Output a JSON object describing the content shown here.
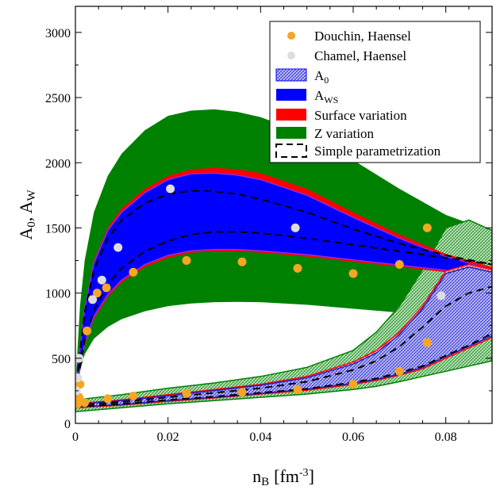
{
  "chart_data": {
    "type": "line",
    "xlabel": "n",
    "xlabel_sub": "B",
    "xlabel_unit": "[fm",
    "xlabel_unit_exp": "-3",
    "xlabel_unit_close": "]",
    "ylabel_a": "A",
    "ylabel_a_sub": "0",
    "ylabel_sep": ", A",
    "ylabel_b_sub": "W",
    "xlim": [
      0,
      0.09
    ],
    "ylim": [
      0,
      3200
    ],
    "x_ticks": [
      0,
      0.02,
      0.04,
      0.06,
      0.08
    ],
    "x_tick_labels": [
      "0",
      "0.02",
      "0.04",
      "0.06",
      "0.08"
    ],
    "y_ticks": [
      0,
      500,
      1000,
      1500,
      2000,
      2500,
      3000
    ],
    "y_tick_labels": [
      "0",
      "500",
      "1000",
      "1500",
      "2000",
      "2500",
      "3000"
    ],
    "legend_position": "top-right",
    "legend": [
      {
        "id": "douchin",
        "text": "Douchin, Haensel"
      },
      {
        "id": "chamel",
        "text": "Chamel, Haensel"
      },
      {
        "id": "a0",
        "text": "A",
        "sub": "0"
      },
      {
        "id": "aws",
        "text": "A",
        "sub": "WS"
      },
      {
        "id": "surface",
        "text": "Surface variation"
      },
      {
        "id": "zvar",
        "text": "Z variation"
      },
      {
        "id": "simple",
        "text": "Simple parametrization"
      }
    ],
    "colors": {
      "douchin": "#f5a623",
      "chamel": "#dddddd",
      "aws": "#0000ff",
      "a0": "#3b3bdc",
      "surface": "#ff0000",
      "zvar": "#008000",
      "simple": "#000000"
    },
    "series": [
      {
        "name": "Douchin, Haensel",
        "kind": "scatter",
        "points": [
          [
            0.0005,
            150
          ],
          [
            0.0008,
            200
          ],
          [
            0.001,
            300
          ],
          [
            0.002,
            160
          ],
          [
            0.0025,
            710
          ],
          [
            0.0047,
            1000
          ],
          [
            0.0067,
            1040
          ],
          [
            0.007,
            190
          ],
          [
            0.0125,
            1160
          ],
          [
            0.0125,
            210
          ],
          [
            0.024,
            1250
          ],
          [
            0.024,
            230
          ],
          [
            0.036,
            1240
          ],
          [
            0.036,
            240
          ],
          [
            0.048,
            1190
          ],
          [
            0.048,
            260
          ],
          [
            0.06,
            1150
          ],
          [
            0.06,
            300
          ],
          [
            0.07,
            1220
          ],
          [
            0.07,
            400
          ],
          [
            0.076,
            1500
          ],
          [
            0.076,
            620
          ]
        ]
      },
      {
        "name": "Chamel, Haensel",
        "kind": "scatter",
        "points": [
          [
            0.0002,
            250
          ],
          [
            0.0005,
            350
          ],
          [
            0.0008,
            500
          ],
          [
            0.0037,
            950
          ],
          [
            0.0057,
            1100
          ],
          [
            0.0092,
            1350
          ],
          [
            0.0205,
            1800
          ],
          [
            0.0475,
            1500
          ],
          [
            0.079,
            980
          ]
        ]
      },
      {
        "name": "Z variation",
        "kind": "band",
        "x": [
          0.0002,
          0.001,
          0.002,
          0.004,
          0.007,
          0.01,
          0.015,
          0.02,
          0.025,
          0.03,
          0.035,
          0.04,
          0.05,
          0.06,
          0.07,
          0.08,
          0.09
        ],
        "upper": [
          420,
          900,
          1250,
          1620,
          1900,
          2070,
          2250,
          2360,
          2400,
          2410,
          2390,
          2350,
          2220,
          2020,
          1800,
          1600,
          1470
        ],
        "lower": [
          230,
          400,
          530,
          650,
          740,
          800,
          860,
          900,
          920,
          930,
          932,
          930,
          910,
          880,
          850,
          815,
          780
        ]
      },
      {
        "name": "Z variation (low branch)",
        "kind": "band",
        "x": [
          0,
          0.01,
          0.02,
          0.03,
          0.04,
          0.05,
          0.06,
          0.065,
          0.07,
          0.075,
          0.08,
          0.085,
          0.09
        ],
        "upper": [
          180,
          220,
          270,
          310,
          360,
          430,
          560,
          700,
          900,
          1180,
          1500,
          1560,
          1480
        ],
        "lower": [
          90,
          120,
          150,
          175,
          200,
          225,
          260,
          285,
          320,
          360,
          400,
          440,
          480
        ]
      },
      {
        "name": "Surface variation",
        "kind": "band",
        "x": [
          0.0005,
          0.002,
          0.004,
          0.007,
          0.01,
          0.015,
          0.02,
          0.025,
          0.03,
          0.035,
          0.04,
          0.05,
          0.06,
          0.07,
          0.08,
          0.09
        ],
        "upper": [
          420,
          900,
          1250,
          1500,
          1650,
          1800,
          1900,
          1950,
          1960,
          1950,
          1920,
          1800,
          1620,
          1450,
          1300,
          1200
        ],
        "lower": [
          300,
          600,
          800,
          970,
          1080,
          1200,
          1270,
          1310,
          1320,
          1320,
          1310,
          1280,
          1240,
          1200,
          1160,
          1100
        ]
      },
      {
        "name": "A_WS",
        "kind": "band",
        "x": [
          0.0005,
          0.002,
          0.004,
          0.007,
          0.01,
          0.015,
          0.02,
          0.025,
          0.03,
          0.035,
          0.04,
          0.05,
          0.06,
          0.07,
          0.08,
          0.09
        ],
        "upper": [
          410,
          880,
          1230,
          1480,
          1620,
          1770,
          1870,
          1915,
          1920,
          1905,
          1870,
          1750,
          1580,
          1420,
          1280,
          1180
        ],
        "lower": [
          320,
          620,
          820,
          990,
          1100,
          1220,
          1290,
          1325,
          1335,
          1335,
          1325,
          1295,
          1255,
          1215,
          1175,
          1120
        ]
      },
      {
        "name": "Surface variation (low branch)",
        "kind": "band",
        "x": [
          0,
          0.01,
          0.02,
          0.03,
          0.04,
          0.05,
          0.06,
          0.065,
          0.07,
          0.075,
          0.08,
          0.085,
          0.09
        ],
        "upper": [
          150,
          180,
          220,
          260,
          300,
          360,
          470,
          560,
          700,
          900,
          1170,
          1220,
          1180
        ],
        "lower": [
          120,
          140,
          170,
          195,
          225,
          255,
          300,
          330,
          370,
          420,
          500,
          580,
          660
        ]
      },
      {
        "name": "A_0",
        "kind": "band",
        "x": [
          0,
          0.01,
          0.02,
          0.03,
          0.04,
          0.05,
          0.06,
          0.065,
          0.07,
          0.075,
          0.08,
          0.085,
          0.09
        ],
        "upper": [
          145,
          175,
          212,
          252,
          292,
          350,
          455,
          540,
          680,
          880,
          1150,
          1200,
          1160
        ],
        "lower": [
          125,
          145,
          175,
          200,
          230,
          262,
          308,
          338,
          378,
          430,
          512,
          592,
          672
        ]
      },
      {
        "name": "Simple parametrization",
        "kind": "dashed",
        "curves": [
          {
            "x": [
              0.0005,
              0.002,
              0.004,
              0.007,
              0.01,
              0.015,
              0.02,
              0.025,
              0.03,
              0.035,
              0.04,
              0.05,
              0.06,
              0.07,
              0.08,
              0.09
            ],
            "y": [
              400,
              850,
              1180,
              1420,
              1560,
              1690,
              1760,
              1785,
              1780,
              1760,
              1720,
              1620,
              1490,
              1380,
              1290,
              1220
            ]
          },
          {
            "x": [
              0.0005,
              0.002,
              0.004,
              0.007,
              0.01,
              0.015,
              0.02,
              0.025,
              0.03,
              0.035,
              0.04,
              0.05,
              0.06,
              0.07,
              0.08,
              0.09
            ],
            "y": [
              330,
              640,
              870,
              1070,
              1190,
              1320,
              1400,
              1450,
              1470,
              1470,
              1460,
              1420,
              1370,
              1320,
              1270,
              1220
            ]
          },
          {
            "x": [
              0,
              0.01,
              0.02,
              0.03,
              0.04,
              0.05,
              0.06,
              0.065,
              0.07,
              0.075,
              0.08,
              0.085,
              0.09
            ],
            "y": [
              140,
              165,
              200,
              235,
              270,
              320,
              410,
              480,
              590,
              740,
              900,
              1000,
              1050
            ]
          },
          {
            "x": [
              0,
              0.01,
              0.02,
              0.03,
              0.04,
              0.05,
              0.06,
              0.065,
              0.07,
              0.075,
              0.08,
              0.085,
              0.09
            ],
            "y": [
              128,
              150,
              180,
              205,
              235,
              265,
              315,
              345,
              390,
              440,
              520,
              600,
              690
            ]
          }
        ]
      }
    ]
  }
}
